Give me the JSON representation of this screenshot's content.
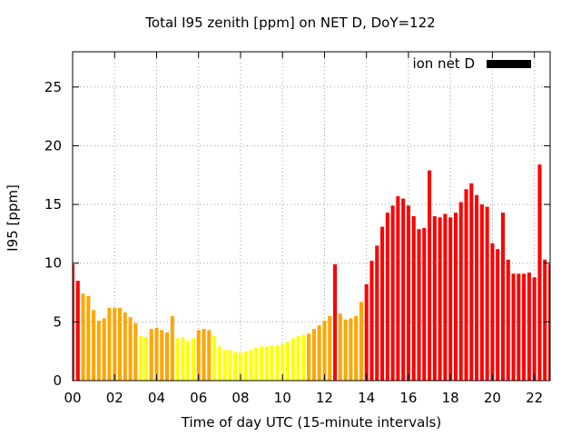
{
  "chart_data": {
    "type": "bar",
    "title": "Total I95 zenith [ppm] on NET D, DoY=122",
    "xlabel": "Time of day UTC (15-minute intervals)",
    "ylabel": "I95 [ppm]",
    "xlim": [
      0,
      22.75
    ],
    "ylim": [
      0,
      28
    ],
    "x_ticks": [
      "00",
      "02",
      "04",
      "06",
      "08",
      "10",
      "12",
      "14",
      "16",
      "18",
      "20",
      "22"
    ],
    "y_ticks": [
      "0",
      "5",
      "10",
      "15",
      "20",
      "25"
    ],
    "grid": true,
    "legend": {
      "position": "top-right",
      "label": "ion net D",
      "color": "#000000"
    },
    "bar_width_hours": 0.175,
    "colors": {
      "low": "#ffff00",
      "medium": "#ffa500",
      "high": "#ff0000"
    },
    "series": [
      {
        "hours": [
          0,
          0.25,
          0.5,
          0.75,
          1,
          1.25,
          1.5,
          1.75,
          2,
          2.25,
          2.5,
          2.75,
          3,
          3.25,
          3.5,
          3.75,
          4,
          4.25,
          4.5,
          4.75,
          5,
          5.25,
          5.5,
          5.75,
          6,
          6.25,
          6.5,
          6.75,
          7,
          7.25,
          7.5,
          7.75,
          8,
          8.25,
          8.5,
          8.75,
          9,
          9.25,
          9.5,
          9.75,
          10,
          10.25,
          10.5,
          10.75,
          11,
          11.25,
          11.5,
          11.75,
          12,
          12.25,
          12.5,
          12.75,
          13,
          13.25,
          13.5,
          13.75,
          14,
          14.25,
          14.5,
          14.75,
          15,
          15.25,
          15.5,
          15.75,
          16,
          16.25,
          16.5,
          16.75,
          17,
          17.25,
          17.5,
          17.75,
          18,
          18.25,
          18.5,
          18.75,
          19,
          19.25,
          19.5,
          19.75,
          20,
          20.25,
          20.5,
          20.75,
          21,
          21.25,
          21.5,
          21.75,
          22,
          22.25,
          22.5,
          22.75
        ],
        "values": [
          9.9,
          8.5,
          7.4,
          7.2,
          6.0,
          5.1,
          5.3,
          6.2,
          6.2,
          6.2,
          5.8,
          5.4,
          4.9,
          3.8,
          3.7,
          4.4,
          4.5,
          4.3,
          4.1,
          5.5,
          3.6,
          3.7,
          3.4,
          3.6,
          4.3,
          4.4,
          4.3,
          3.8,
          2.9,
          2.6,
          2.6,
          2.4,
          2.4,
          2.5,
          2.6,
          2.8,
          2.9,
          2.9,
          3.0,
          3.0,
          3.1,
          3.3,
          3.6,
          3.8,
          3.9,
          4.0,
          4.4,
          4.7,
          5.1,
          5.5,
          9.9,
          5.7,
          5.2,
          5.3,
          5.5,
          6.7,
          8.2,
          10.2,
          11.5,
          13.1,
          14.3,
          14.9,
          15.7,
          15.5,
          14.9,
          14.0,
          12.9,
          13.0,
          17.9,
          14.0,
          13.9,
          14.2,
          13.9,
          14.3,
          15.2,
          16.3,
          16.8,
          15.8,
          15.0,
          14.8,
          11.7,
          11.2,
          14.3,
          10.3,
          9.1,
          9.1,
          9.1,
          9.2,
          8.8,
          18.4,
          10.3,
          9.9
        ],
        "levels": [
          "high",
          "high",
          "medium",
          "medium",
          "medium",
          "medium",
          "medium",
          "medium",
          "medium",
          "medium",
          "medium",
          "medium",
          "medium",
          "low",
          "low",
          "medium",
          "medium",
          "medium",
          "medium",
          "medium",
          "low",
          "low",
          "low",
          "low",
          "medium",
          "medium",
          "medium",
          "low",
          "low",
          "low",
          "low",
          "low",
          "low",
          "low",
          "low",
          "low",
          "low",
          "low",
          "low",
          "low",
          "low",
          "low",
          "low",
          "low",
          "low",
          "medium",
          "medium",
          "medium",
          "medium",
          "medium",
          "high",
          "medium",
          "medium",
          "medium",
          "medium",
          "medium",
          "high",
          "high",
          "high",
          "high",
          "high",
          "high",
          "high",
          "high",
          "high",
          "high",
          "high",
          "high",
          "high",
          "high",
          "high",
          "high",
          "high",
          "high",
          "high",
          "high",
          "high",
          "high",
          "high",
          "high",
          "high",
          "high",
          "high",
          "high",
          "high",
          "high",
          "high",
          "high",
          "high",
          "high",
          "high",
          "high"
        ]
      }
    ]
  }
}
